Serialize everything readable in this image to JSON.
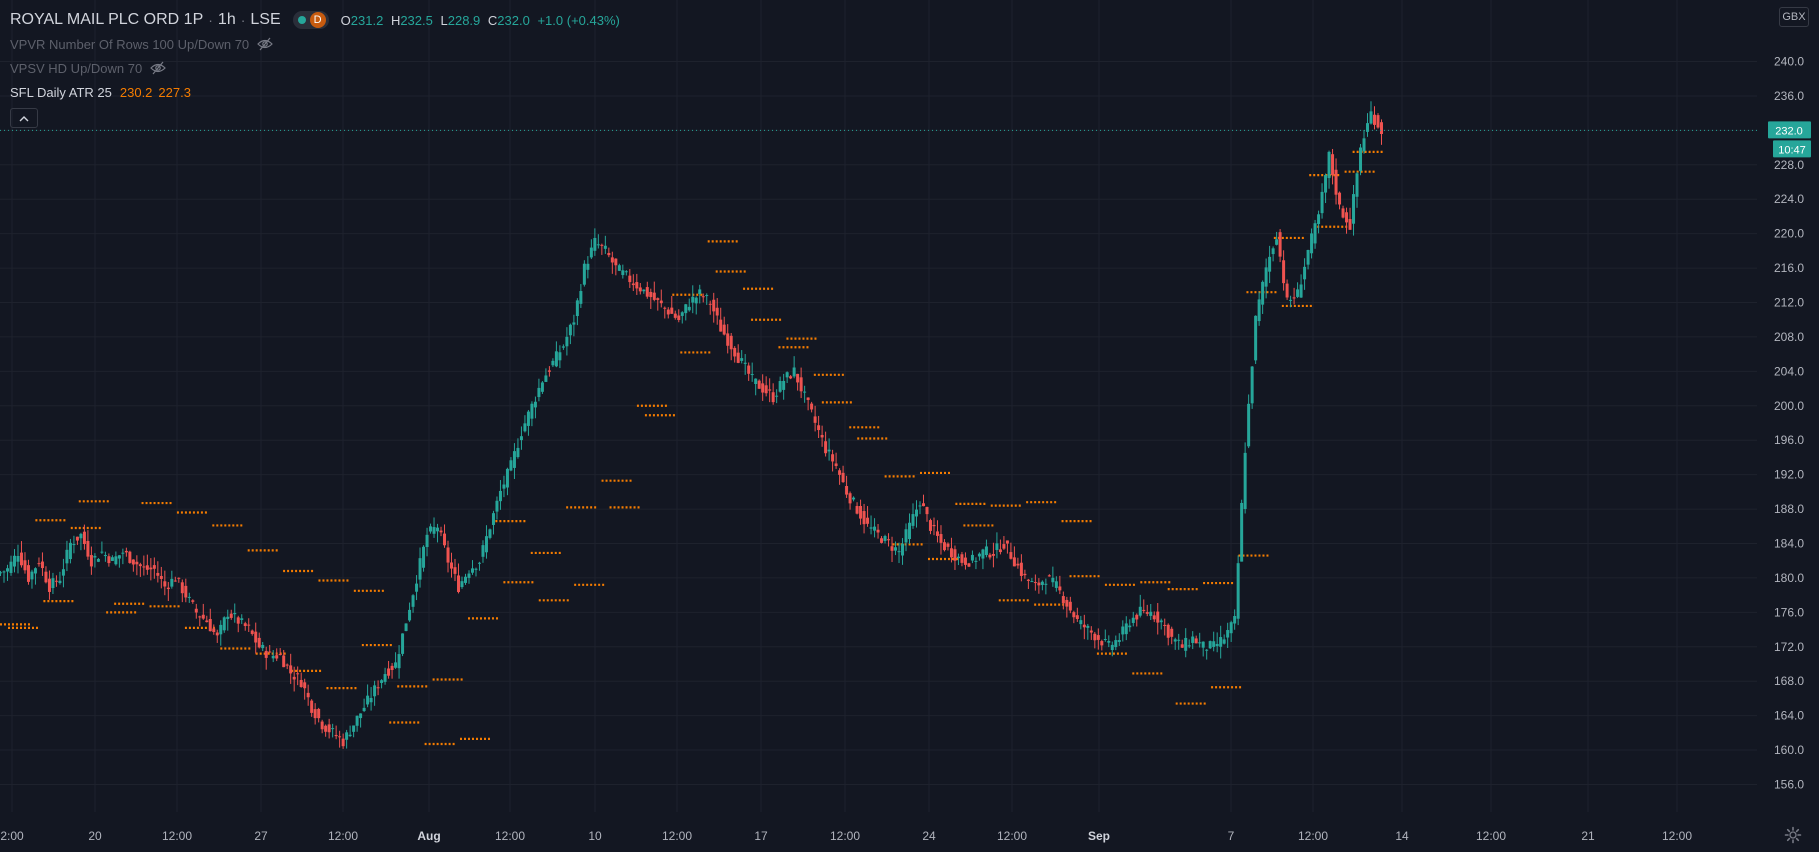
{
  "header": {
    "symbol": "ROYAL MAIL PLC ORD 1P",
    "interval": "1h",
    "exchange": "LSE",
    "status_badge": "D",
    "ohlc": {
      "o_label": "O",
      "o": "231.2",
      "h_label": "H",
      "h": "232.5",
      "l_label": "L",
      "l": "228.9",
      "c_label": "C",
      "c": "232.0",
      "change": "+1.0 (+0.43%)"
    }
  },
  "indicators": [
    {
      "label": "VPVR Number Of Rows 100 Up/Down 70",
      "icon": "eye-hidden-icon"
    },
    {
      "label": "VPSV HD Up/Down 70",
      "icon": "eye-hidden-icon"
    },
    {
      "label": "SFL Daily ATR 25",
      "value1": "230.2",
      "value2": "227.3"
    }
  ],
  "currency": "GBX",
  "price_label": "232.0",
  "countdown_label": "10:47",
  "colors": {
    "background": "#131722",
    "up": "#26a69a",
    "down": "#ef5350",
    "atr": "#f57c00",
    "grid": "#1e222d",
    "axis_text": "#b2b5be"
  },
  "chart_data": {
    "type": "candlestick",
    "title": "ROYAL MAIL PLC ORD 1P · 1h · LSE",
    "ylim": [
      153.5,
      242.5
    ],
    "y_ticks": [
      "240.0",
      "236.0",
      "232.0",
      "228.0",
      "224.0",
      "220.0",
      "216.0",
      "212.0",
      "208.0",
      "204.0",
      "200.0",
      "196.0",
      "192.0",
      "188.0",
      "184.0",
      "180.0",
      "176.0",
      "172.0",
      "168.0",
      "164.0",
      "160.0",
      "156.0"
    ],
    "x_ticks": [
      "2:00",
      "20",
      "12:00",
      "27",
      "12:00",
      "Aug",
      "12:00",
      "10",
      "12:00",
      "17",
      "12:00",
      "24",
      "12:00",
      "Sep",
      "7",
      "12:00",
      "14",
      "12:00",
      "21",
      "12:00"
    ],
    "bold_x_ticks": [
      "Aug",
      "Sep"
    ],
    "last_price": 232.0,
    "closes": [
      181,
      183,
      180,
      182,
      179,
      180,
      184,
      185,
      182,
      183,
      182,
      183,
      182,
      181,
      181,
      179,
      180,
      178,
      176,
      175,
      173,
      176,
      175,
      174,
      172,
      171,
      171,
      169,
      168,
      165,
      163,
      162,
      161,
      163,
      165,
      167,
      169,
      170,
      175,
      180,
      185,
      186,
      182,
      179,
      181,
      182,
      186,
      190,
      193,
      197,
      200,
      203,
      205,
      207,
      210,
      216,
      219,
      218,
      216,
      215,
      214,
      213,
      212,
      211,
      210,
      212,
      213,
      212,
      209,
      207,
      205,
      203,
      202,
      201,
      203,
      204,
      201,
      198,
      195,
      193,
      190,
      188,
      186,
      185,
      184,
      183,
      186,
      189,
      186,
      184,
      183,
      182,
      182,
      183,
      183,
      184,
      182,
      180,
      179,
      180,
      179,
      177,
      175,
      174,
      173,
      172,
      173,
      175,
      176,
      176,
      175,
      173,
      172,
      173,
      172,
      172,
      173,
      175,
      195,
      210,
      216,
      220,
      212,
      213,
      218,
      222,
      229,
      223,
      221,
      230,
      234,
      232
    ],
    "atr_levels": [
      {
        "level": 174.6
      },
      {
        "level": 174.2
      },
      {
        "level": 186.7
      },
      {
        "level": 177.3
      },
      {
        "level": 185.8
      },
      {
        "level": 188.9
      },
      {
        "level": 176.0
      },
      {
        "level": 177.0
      },
      {
        "level": 188.7
      },
      {
        "level": 176.7
      },
      {
        "level": 187.6
      },
      {
        "level": 174.2
      },
      {
        "level": 186.1
      },
      {
        "level": 171.8
      },
      {
        "level": 183.2
      },
      {
        "level": 171.2
      },
      {
        "level": 180.8
      },
      {
        "level": 169.2
      },
      {
        "level": 179.7
      },
      {
        "level": 167.2
      },
      {
        "level": 178.5
      },
      {
        "level": 172.2
      },
      {
        "level": 163.2
      },
      {
        "level": 167.4
      },
      {
        "level": 160.7
      },
      {
        "level": 168.2
      },
      {
        "level": 161.3
      },
      {
        "level": 175.3
      },
      {
        "level": 186.6
      },
      {
        "level": 179.5
      },
      {
        "level": 182.9
      },
      {
        "level": 177.4
      },
      {
        "level": 188.2
      },
      {
        "level": 179.2
      },
      {
        "level": 191.3
      },
      {
        "level": 188.2
      },
      {
        "level": 200.0
      },
      {
        "level": 198.9
      },
      {
        "level": 212.9
      },
      {
        "level": 206.2
      },
      {
        "level": 219.1
      },
      {
        "level": 215.6
      },
      {
        "level": 213.6
      },
      {
        "level": 210.0
      },
      {
        "level": 206.8
      },
      {
        "level": 207.8
      },
      {
        "level": 203.6
      },
      {
        "level": 200.4
      },
      {
        "level": 197.5
      },
      {
        "level": 196.2
      },
      {
        "level": 191.8
      },
      {
        "level": 183.9
      },
      {
        "level": 192.2
      },
      {
        "level": 182.2
      },
      {
        "level": 188.6
      },
      {
        "level": 186.1
      },
      {
        "level": 188.4
      },
      {
        "level": 177.4
      },
      {
        "level": 188.8
      },
      {
        "level": 176.9
      },
      {
        "level": 186.6
      },
      {
        "level": 180.2
      },
      {
        "level": 171.2
      },
      {
        "level": 179.2
      },
      {
        "level": 168.9
      },
      {
        "level": 179.5
      },
      {
        "level": 178.7
      },
      {
        "level": 165.4
      },
      {
        "level": 179.4
      },
      {
        "level": 167.3
      },
      {
        "level": 182.6
      },
      {
        "level": 213.2
      },
      {
        "level": 219.5
      },
      {
        "level": 211.6
      },
      {
        "level": 226.8
      },
      {
        "level": 220.8
      },
      {
        "level": 227.2
      },
      {
        "level": 229.5
      }
    ]
  }
}
